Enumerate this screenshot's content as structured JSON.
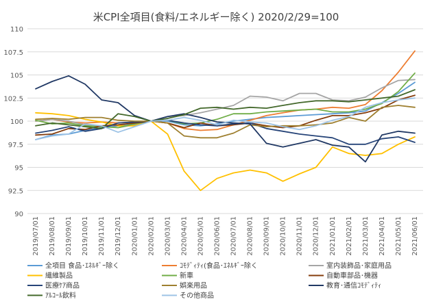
{
  "chart_data": {
    "type": "line",
    "title": "米CPI全項目(食料/エネルギー除く) 2020/2/29=100",
    "xlabel": "",
    "ylabel": "",
    "ylim": [
      90,
      110
    ],
    "y_ticks": [
      "110",
      "107.5",
      "105",
      "102.5",
      "100",
      "97.5",
      "95",
      "92.5",
      "90"
    ],
    "y_tick_values": [
      110,
      107.5,
      105,
      102.5,
      100,
      97.5,
      95,
      92.5,
      90
    ],
    "grid": "horizontal",
    "legend_position": "bottom",
    "categories": [
      "2019/07/01",
      "2019/08/01",
      "2019/09/01",
      "2019/10/01",
      "2019/11/01",
      "2019/12/01",
      "2020/01/01",
      "2020/02/01",
      "2020/03/01",
      "2020/04/01",
      "2020/05/01",
      "2020/06/01",
      "2020/07/01",
      "2020/08/01",
      "2020/09/01",
      "2020/10/01",
      "2020/11/01",
      "2020/12/01",
      "2021/01/01",
      "2021/02/01",
      "2021/03/01",
      "2021/04/01",
      "2021/05/01",
      "2021/06/01"
    ],
    "series": [
      {
        "name": "全項目 食品･ｴﾈﾙｷﾞｰ除く",
        "color": "#5b9bd5",
        "values": [
          98.0,
          98.5,
          98.6,
          99.0,
          99.3,
          99.5,
          99.8,
          100.0,
          100.0,
          99.6,
          99.5,
          99.7,
          100.0,
          100.2,
          100.4,
          100.5,
          100.6,
          100.7,
          100.8,
          100.9,
          101.1,
          102.0,
          103.0,
          104.2
        ]
      },
      {
        "name": "ｺﾓﾃﾞｨﾃｨ(食品･ｴﾈﾙｷﾞｰ除く",
        "color": "#ed7d31",
        "values": [
          100.0,
          100.2,
          99.9,
          99.8,
          99.9,
          99.8,
          99.9,
          100.0,
          99.8,
          99.2,
          99.0,
          99.1,
          99.6,
          100.1,
          100.6,
          100.9,
          101.2,
          101.3,
          101.5,
          101.4,
          101.8,
          103.3,
          105.3,
          107.6
        ]
      },
      {
        "name": "室内装飾品･家庭用品",
        "color": "#a5a5a5",
        "values": [
          100.0,
          100.2,
          100.0,
          99.6,
          99.5,
          99.3,
          99.6,
          100.0,
          100.5,
          100.6,
          100.9,
          101.3,
          101.7,
          102.7,
          102.6,
          102.2,
          103.0,
          103.0,
          102.3,
          102.2,
          102.6,
          103.6,
          104.4,
          104.5
        ]
      },
      {
        "name": "繊維製品",
        "color": "#ffc000",
        "values": [
          100.9,
          100.8,
          100.6,
          100.2,
          99.9,
          99.5,
          99.5,
          100.0,
          98.6,
          94.6,
          92.5,
          93.8,
          94.4,
          94.7,
          94.4,
          93.5,
          94.3,
          95.0,
          97.2,
          96.5,
          96.3,
          96.5,
          97.5,
          98.3
        ]
      },
      {
        "name": "新車",
        "color": "#70ad47",
        "values": [
          100.1,
          99.7,
          99.8,
          99.5,
          99.4,
          99.3,
          99.7,
          100.0,
          100.1,
          99.7,
          99.8,
          100.2,
          100.8,
          100.8,
          101.0,
          101.1,
          101.2,
          101.3,
          101.0,
          101.0,
          101.3,
          101.9,
          103.2,
          105.2
        ]
      },
      {
        "name": "自動車部品･機器",
        "color": "#843c0c",
        "values": [
          98.5,
          98.6,
          99.2,
          99.1,
          99.5,
          99.6,
          99.8,
          100.0,
          99.8,
          99.3,
          99.8,
          99.5,
          99.6,
          99.8,
          99.5,
          99.3,
          99.5,
          100.1,
          100.6,
          100.6,
          100.9,
          101.4,
          102.3,
          102.8
        ]
      },
      {
        "name": "医療ｹｱ商品",
        "color": "#264478",
        "values": [
          98.7,
          99.0,
          99.4,
          98.9,
          99.2,
          99.8,
          99.9,
          100.0,
          100.1,
          99.8,
          99.6,
          99.5,
          99.7,
          99.8,
          99.2,
          98.9,
          98.6,
          98.4,
          98.2,
          97.5,
          97.5,
          98.1,
          98.3,
          97.7
        ]
      },
      {
        "name": "娯楽用品",
        "color": "#9e7f2f",
        "values": [
          100.2,
          100.3,
          100.2,
          100.4,
          100.4,
          100.1,
          100.0,
          100.0,
          99.8,
          98.4,
          98.2,
          98.2,
          98.7,
          99.6,
          99.4,
          99.5,
          99.5,
          99.6,
          99.8,
          100.4,
          100.0,
          101.5,
          101.7,
          101.5
        ]
      },
      {
        "name": "教育･通信ｺﾓﾃﾞｨﾃｨ",
        "color": "#203864",
        "values": [
          103.5,
          104.3,
          104.9,
          104.0,
          102.3,
          102.0,
          100.6,
          100.0,
          100.5,
          100.8,
          100.4,
          99.9,
          99.8,
          99.7,
          97.6,
          97.2,
          97.6,
          98.0,
          97.4,
          97.2,
          95.6,
          98.5,
          98.9,
          98.7
        ]
      },
      {
        "name": "ｱﾙｺｰﾙ飲料",
        "color": "#43682b",
        "values": [
          99.5,
          99.8,
          99.6,
          99.4,
          99.2,
          100.8,
          100.5,
          100.0,
          100.3,
          100.7,
          101.4,
          101.5,
          101.3,
          101.5,
          101.4,
          101.7,
          102.0,
          102.2,
          102.2,
          102.1,
          102.3,
          102.5,
          102.7,
          103.4
        ]
      },
      {
        "name": "その他商品",
        "color": "#9dc3e6",
        "values": [
          98.0,
          98.4,
          98.6,
          99.7,
          99.5,
          98.8,
          99.4,
          100.0,
          100.1,
          100.4,
          100.1,
          99.6,
          100.1,
          99.9,
          99.8,
          99.4,
          99.1,
          99.5,
          100.1,
          100.5,
          101.5,
          102.0,
          102.3,
          102.5
        ]
      }
    ]
  }
}
